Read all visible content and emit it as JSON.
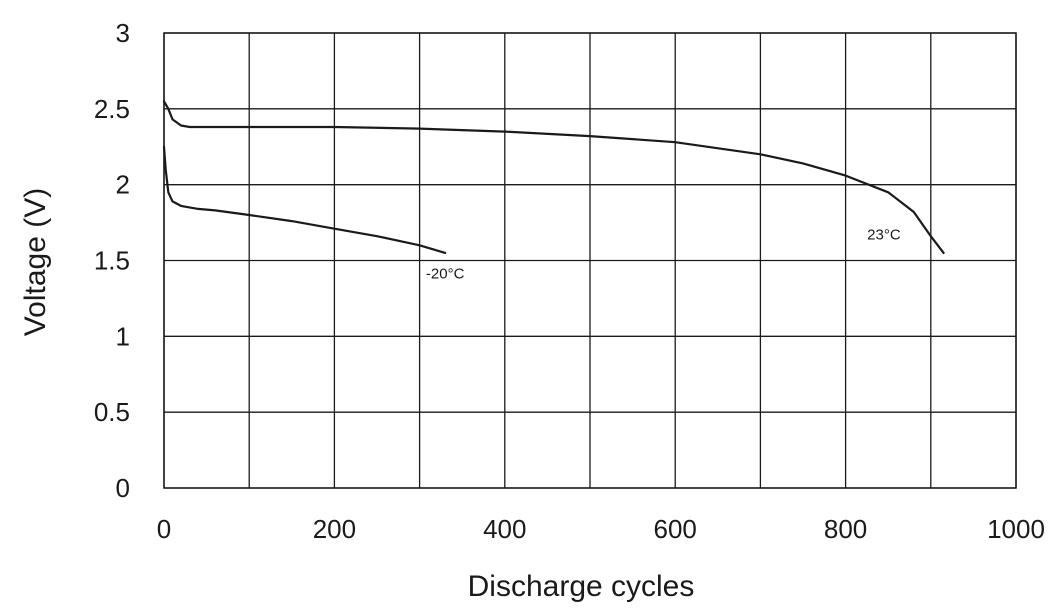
{
  "chart_data": {
    "type": "line",
    "title": "",
    "xlabel": "Discharge cycles",
    "ylabel": "Voltage (V)",
    "xlim": [
      0,
      1000
    ],
    "ylim": [
      0,
      3
    ],
    "xticks": [
      0,
      200,
      400,
      600,
      800,
      1000
    ],
    "xtick_labels": [
      "0",
      "200",
      "400",
      "600",
      "800",
      "1000"
    ],
    "yticks": [
      0,
      0.5,
      1,
      1.5,
      2,
      2.5,
      3
    ],
    "ytick_labels": [
      "0",
      "0.5",
      "1",
      "1.5",
      "2",
      "2.5",
      "3"
    ],
    "x_gridlines": [
      0,
      100,
      200,
      300,
      400,
      500,
      600,
      700,
      800,
      900,
      1000
    ],
    "y_gridlines": [
      0,
      0.5,
      1,
      1.5,
      2,
      2.5,
      3
    ],
    "grid": true,
    "legend": "none",
    "colors": {
      "line": "#1a1a1a",
      "grid": "#1a1a1a",
      "text": "#1a1a1a",
      "background": "#ffffff"
    },
    "series": [
      {
        "x": [
          0,
          5,
          10,
          20,
          30,
          100,
          200,
          300,
          400,
          500,
          600,
          700,
          750,
          800,
          850,
          880,
          900,
          915
        ],
        "y": [
          2.55,
          2.5,
          2.43,
          2.39,
          2.38,
          2.38,
          2.38,
          2.37,
          2.35,
          2.32,
          2.28,
          2.2,
          2.14,
          2.06,
          1.95,
          1.82,
          1.66,
          1.55
        ]
      },
      {
        "x": [
          0,
          2,
          5,
          10,
          20,
          40,
          60,
          100,
          150,
          200,
          250,
          300,
          330
        ],
        "y": [
          2.25,
          2.1,
          1.95,
          1.89,
          1.86,
          1.84,
          1.83,
          1.8,
          1.76,
          1.71,
          1.66,
          1.6,
          1.55
        ]
      }
    ],
    "annotations": [
      {
        "text": "23°C",
        "x": 845,
        "y": 1.64
      },
      {
        "text": "-20°C",
        "x": 330,
        "y": 1.38
      }
    ]
  }
}
